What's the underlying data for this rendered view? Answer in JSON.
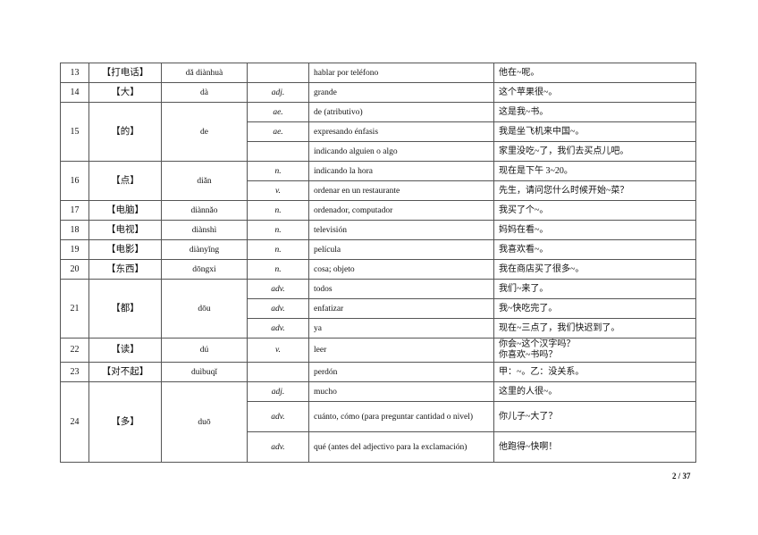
{
  "entries": [
    {
      "num": "13",
      "word": "【打电话】",
      "pinyin": "dǎ diànhuà",
      "senses": [
        {
          "pos": "",
          "meaning": "hablar por teléfono",
          "example": "他在~呢。"
        }
      ]
    },
    {
      "num": "14",
      "word": "【大】",
      "pinyin": "dà",
      "senses": [
        {
          "pos": "adj.",
          "meaning": "grande",
          "example": "这个苹果很~。"
        }
      ]
    },
    {
      "num": "15",
      "word": "【的】",
      "pinyin": "de",
      "senses": [
        {
          "pos": "ae.",
          "meaning": "de (atributivo)",
          "example": "这是我~书。"
        },
        {
          "pos": "ae.",
          "meaning": "expresando énfasis",
          "example": "我是坐飞机来中国~。"
        },
        {
          "pos": "",
          "meaning": "indicando alguien o algo",
          "example": "家里没吃~了，我们去买点儿吧。"
        }
      ]
    },
    {
      "num": "16",
      "word": "【点】",
      "pinyin": "diǎn",
      "senses": [
        {
          "pos": "n.",
          "meaning": "indicando la hora",
          "example": "现在是下午 3~20。"
        },
        {
          "pos": "v.",
          "meaning": "ordenar en un restaurante",
          "example": "先生，请问您什么时候开始~菜？"
        }
      ]
    },
    {
      "num": "17",
      "word": "【电脑】",
      "pinyin": "diànnǎo",
      "senses": [
        {
          "pos": "n.",
          "meaning": "ordenador, computador",
          "example": "我买了个~。"
        }
      ]
    },
    {
      "num": "18",
      "word": "【电视】",
      "pinyin": "diànshì",
      "senses": [
        {
          "pos": "n.",
          "meaning": "televisión",
          "example": "妈妈在看~。"
        }
      ]
    },
    {
      "num": "19",
      "word": "【电影】",
      "pinyin": "diànyǐng",
      "senses": [
        {
          "pos": "n.",
          "meaning": "película",
          "example": "我喜欢看~。"
        }
      ]
    },
    {
      "num": "20",
      "word": "【东西】",
      "pinyin": "dōngxi",
      "senses": [
        {
          "pos": "n.",
          "meaning": "cosa; objeto",
          "example": "我在商店买了很多~。"
        }
      ]
    },
    {
      "num": "21",
      "word": "【都】",
      "pinyin": "dōu",
      "senses": [
        {
          "pos": "adv.",
          "meaning": "todos",
          "example": "我们~来了。"
        },
        {
          "pos": "adv.",
          "meaning": "enfatizar",
          "example": "我~快吃完了。"
        },
        {
          "pos": "adv.",
          "meaning": "ya",
          "example": "现在~三点了，我们快迟到了。"
        }
      ]
    },
    {
      "num": "22",
      "word": "【读】",
      "pinyin": "dú",
      "senses": [
        {
          "pos": "v.",
          "meaning": "leer",
          "example": "你会~这个汉字吗？",
          "example2": "你喜欢~书吗？"
        }
      ]
    },
    {
      "num": "23",
      "word": "【对不起】",
      "pinyin": "duìbuqǐ",
      "senses": [
        {
          "pos": "",
          "meaning": "perdón",
          "example": "甲：~。乙：没关系。"
        }
      ]
    },
    {
      "num": "24",
      "word": "【多】",
      "pinyin": "duō",
      "senses": [
        {
          "pos": "adj.",
          "meaning": "mucho",
          "example": "这里的人很~。"
        },
        {
          "pos": "adv.",
          "meaning": "cuánto, cómo (para preguntar cantidad o nivel)",
          "example": "你儿子~大了？"
        },
        {
          "pos": "adv.",
          "meaning": "qué (antes del adjectivo para la exclamación)",
          "example": "他跑得~快啊！"
        }
      ]
    }
  ],
  "page_number": "2 / 37"
}
